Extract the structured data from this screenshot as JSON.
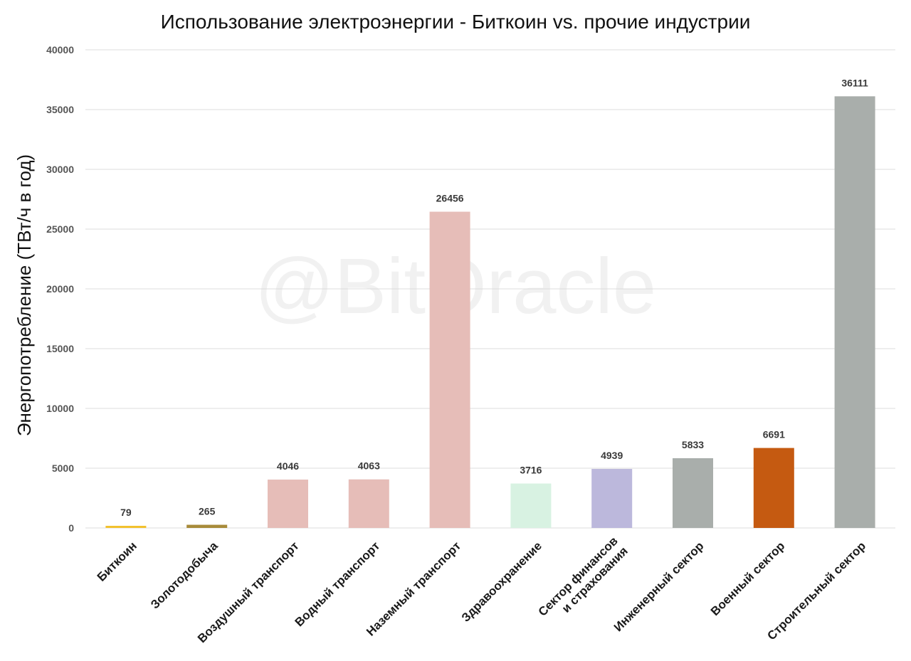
{
  "watermark": "@BitOracle",
  "chart_data": {
    "type": "bar",
    "title": "Использование электроэнергии - Биткоин vs. прочие индустрии",
    "xlabel": "",
    "ylabel": "Энергопотребление (ТВт/ч в год)",
    "ylim": [
      0,
      40000
    ],
    "yticks": [
      0,
      5000,
      10000,
      15000,
      20000,
      25000,
      30000,
      35000,
      40000
    ],
    "grid": true,
    "legend": "none",
    "categories": [
      [
        "Биткоин"
      ],
      [
        "Золотодобыча"
      ],
      [
        "Воздушный транспорт"
      ],
      [
        "Водный транспорт"
      ],
      [
        "Наземный транспорт"
      ],
      [
        "Здравоохранение"
      ],
      [
        "Сектор финансов",
        "и страхования"
      ],
      [
        "Инженерный сектор"
      ],
      [
        "Военный сектор"
      ],
      [
        "Строительный сектор"
      ]
    ],
    "values": [
      79,
      265,
      4046,
      4063,
      26456,
      3716,
      4939,
      5833,
      6691,
      36111
    ],
    "colors": [
      "#f2c12e",
      "#a88b3a",
      "#e6bdb8",
      "#e6bdb8",
      "#e6bdb8",
      "#d8f2e2",
      "#bcb8dc",
      "#a9aeab",
      "#c55a11",
      "#a9aeab"
    ]
  }
}
